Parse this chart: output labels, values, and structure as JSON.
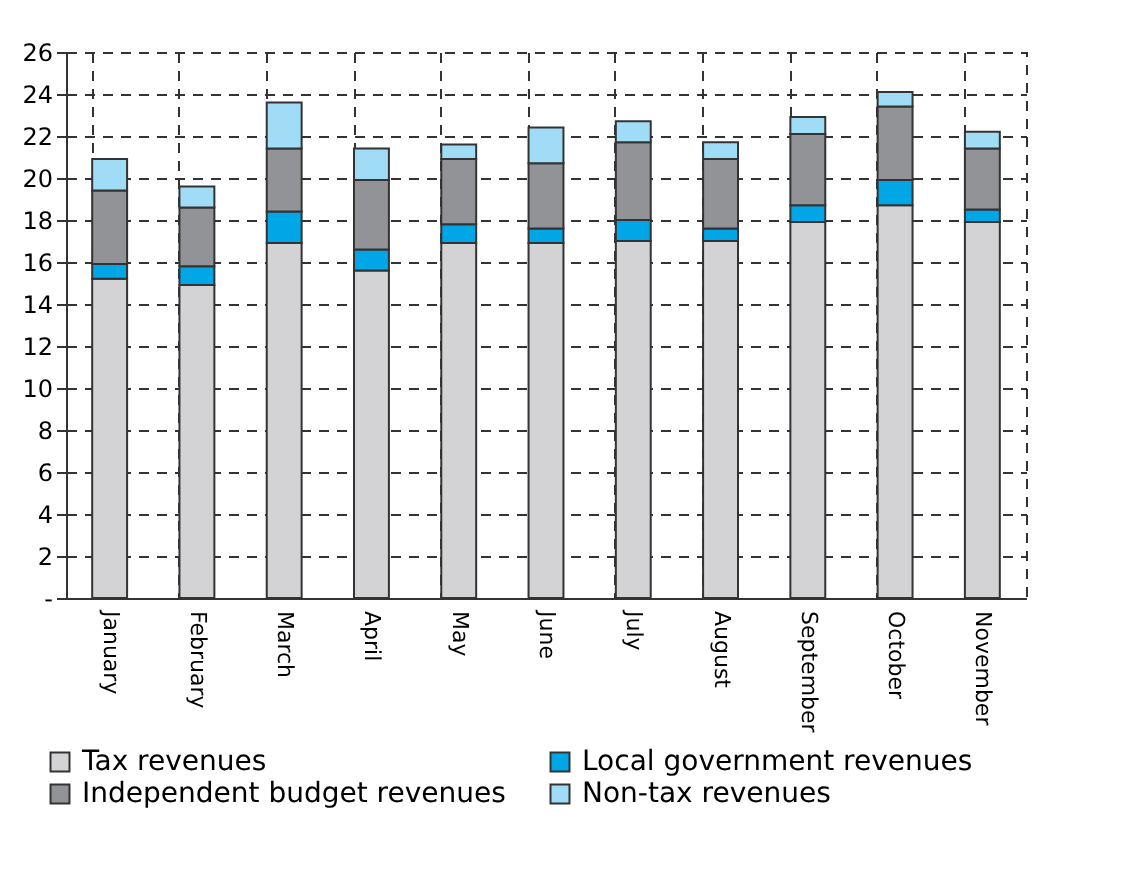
{
  "chart_data": {
    "type": "bar",
    "stacked": true,
    "categories": [
      "January",
      "February",
      "March",
      "April",
      "May",
      "June",
      "July",
      "August",
      "September",
      "October",
      "November"
    ],
    "series": [
      {
        "name": "Tax revenues",
        "color": "#d3d3d5",
        "values": [
          15.2,
          14.9,
          16.9,
          15.6,
          16.9,
          16.9,
          17.0,
          17.0,
          17.9,
          18.7,
          17.9
        ]
      },
      {
        "name": "Local government revenues",
        "color": "#00a6e6",
        "values": [
          0.7,
          0.9,
          1.5,
          1.0,
          0.9,
          0.7,
          1.0,
          0.6,
          0.8,
          1.2,
          0.6
        ]
      },
      {
        "name": "Independent budget revenues",
        "color": "#929396",
        "values": [
          3.5,
          2.8,
          3.0,
          3.3,
          3.1,
          3.1,
          3.7,
          3.3,
          3.4,
          3.5,
          2.9
        ]
      },
      {
        "name": "Non-tax revenues",
        "color": "#a0dcf6",
        "values": [
          1.5,
          1.0,
          2.2,
          1.5,
          0.7,
          1.7,
          1.0,
          0.8,
          0.8,
          0.7,
          0.8
        ]
      }
    ],
    "ylim": [
      0,
      26
    ],
    "yticks": [
      {
        "value": 0,
        "label": "-"
      },
      2,
      4,
      6,
      8,
      10,
      12,
      14,
      16,
      18,
      20,
      22,
      24,
      26
    ],
    "grid": true,
    "legend": "bottom"
  }
}
